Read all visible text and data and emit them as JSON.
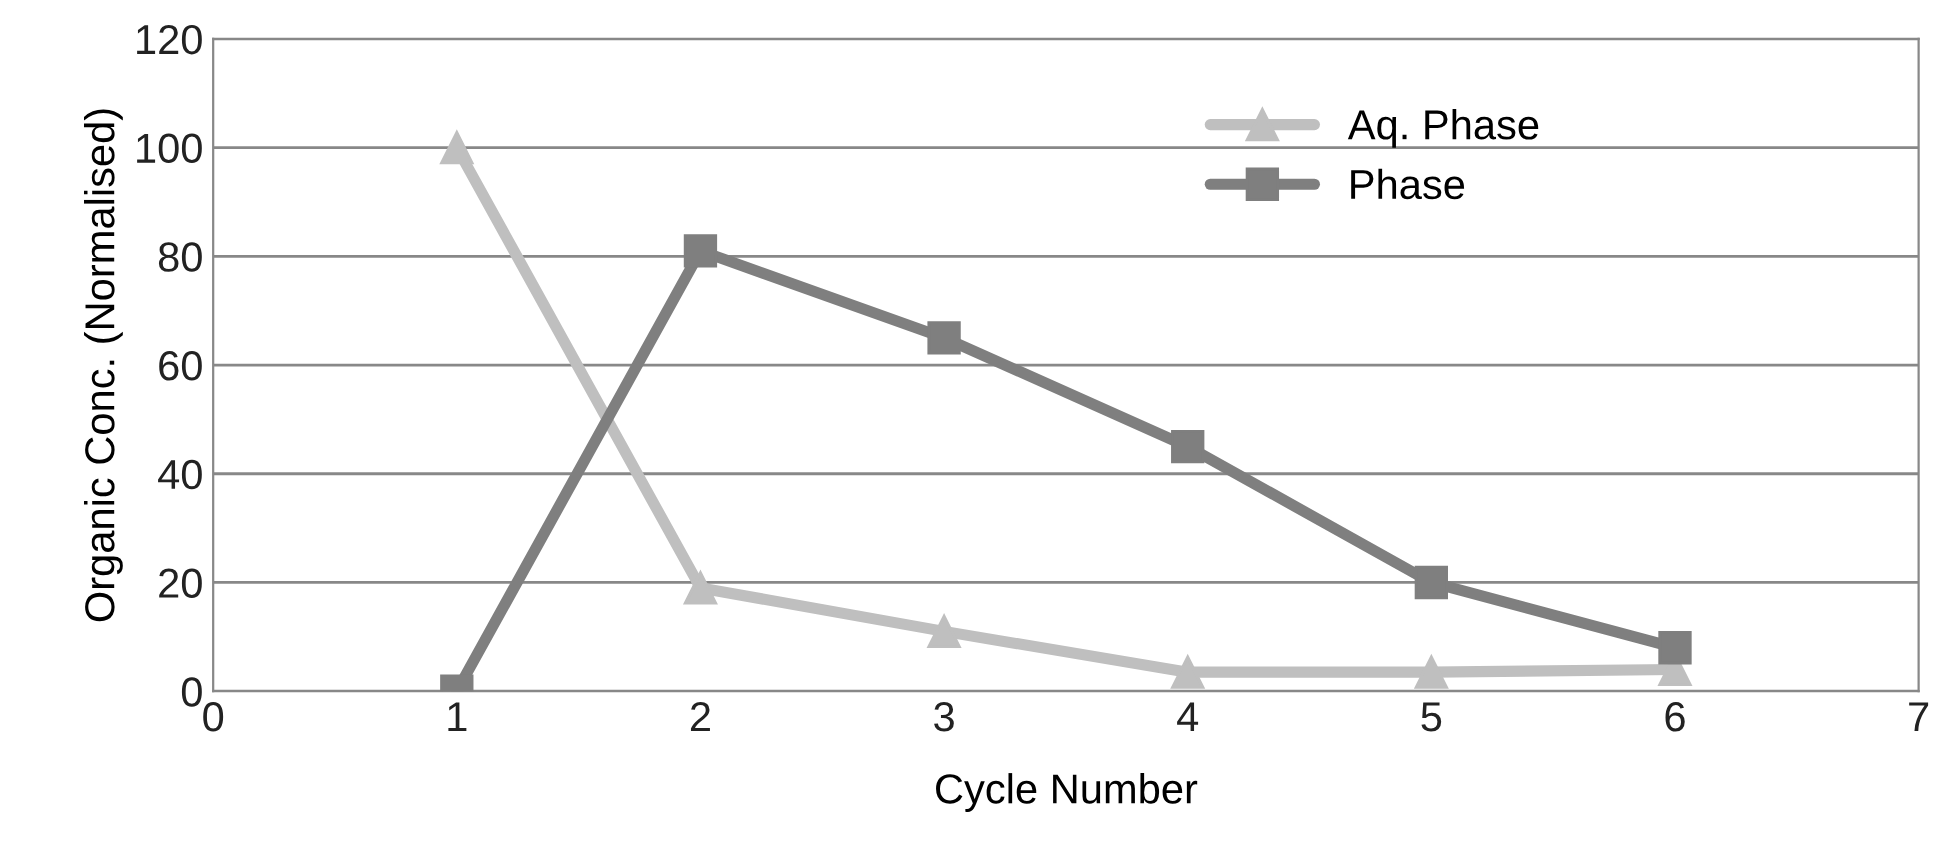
{
  "chart_data": {
    "type": "line",
    "xlabel": "Cycle Number",
    "ylabel": "Organic Conc. (Normalised)",
    "x": [
      1,
      2,
      3,
      4,
      5,
      6
    ],
    "series": [
      {
        "name": "Aq. Phase",
        "color": "#bfbfbf",
        "marker": "triangle",
        "values": [
          100,
          19,
          11,
          3.5,
          3.5,
          4
        ]
      },
      {
        "name": "Phase",
        "color": "#7f7f7f",
        "marker": "square",
        "values": [
          0,
          81,
          65,
          45,
          20,
          8
        ]
      }
    ],
    "xlim": [
      0,
      7
    ],
    "xticks": [
      0,
      1,
      2,
      3,
      4,
      5,
      6,
      7
    ],
    "ylim": [
      0,
      120
    ],
    "yticks": [
      0,
      20,
      40,
      60,
      80,
      100,
      120
    ],
    "grid": "y",
    "legend": "top right",
    "line_style": "solid"
  }
}
